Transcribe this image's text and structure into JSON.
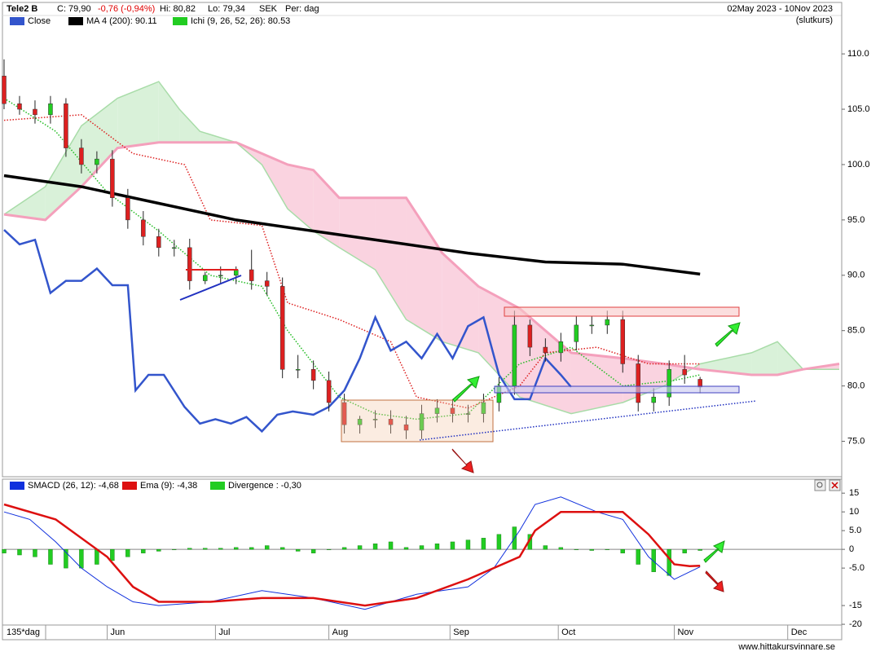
{
  "chart_data": [
    {
      "type": "candlestick",
      "title": "Tele2 B",
      "info": [
        "C: 79,90",
        "-0,76 (-0,94%)",
        "Hi: 80,82",
        "Lo: 79,34",
        "SEK",
        "Per: dag"
      ],
      "date_range": "02May 2023 - 10Nov 2023",
      "price_note": "(slutkurs)",
      "x": [
        0,
        3,
        6,
        9,
        12,
        15,
        18,
        21,
        24,
        27,
        30,
        33,
        36,
        39,
        42,
        45,
        48,
        51,
        54,
        57,
        60,
        63,
        66,
        69,
        72,
        75,
        78,
        81,
        84,
        87,
        90,
        93,
        96,
        99,
        102,
        105,
        108,
        111,
        114,
        117,
        120,
        123,
        126,
        129,
        132,
        135
      ],
      "open": [
        108,
        105.5,
        105,
        104.5,
        105.5,
        101.5,
        100,
        100.5,
        97,
        95,
        93.5,
        92.5,
        92.5,
        89.5,
        90,
        90,
        90.5,
        89.5,
        89,
        81.5,
        81.5,
        80.5,
        78.5,
        76.5,
        77,
        77,
        76.5,
        76,
        77.5,
        78,
        77.5,
        77.5,
        78.5,
        80,
        85.5,
        83.5,
        83,
        84,
        85.5,
        85.5,
        86,
        82,
        78.5,
        79,
        81.5,
        80.6
      ],
      "high": [
        109.5,
        106.2,
        105.8,
        106.2,
        106,
        102.3,
        101.2,
        101.3,
        97.8,
        95.8,
        94.2,
        93.2,
        93.3,
        90.3,
        90.8,
        90.8,
        92.3,
        90.3,
        89.8,
        82.8,
        82.3,
        81.3,
        79.3,
        77.3,
        77.8,
        77.8,
        77.3,
        78.3,
        78.8,
        78.8,
        78.3,
        79.3,
        80.8,
        86.8,
        86,
        84.3,
        84.8,
        86.3,
        86.3,
        86.8,
        86.8,
        82.8,
        79.8,
        82.3,
        82.8,
        80.82
      ],
      "low": [
        105,
        104.5,
        103.7,
        103.7,
        100.7,
        99.2,
        99.2,
        96.2,
        94.2,
        92.7,
        91.7,
        91.7,
        88.7,
        89.2,
        89.2,
        89.2,
        88.7,
        88.2,
        80.7,
        80.7,
        79.7,
        77.7,
        75.7,
        75.7,
        76.2,
        75.7,
        75.2,
        75.2,
        76.7,
        76.7,
        76.7,
        76.7,
        77.7,
        79.2,
        82.7,
        82.2,
        82.2,
        83.2,
        84.7,
        84.7,
        81.2,
        77.7,
        77.7,
        78.2,
        80.2,
        79.34
      ],
      "close": [
        105.5,
        105,
        104.5,
        105.5,
        101.5,
        100,
        100.5,
        97,
        95,
        93.5,
        92.5,
        92.5,
        89.5,
        90,
        90,
        90.5,
        89.5,
        89,
        81.5,
        81.5,
        80.5,
        78.5,
        76.5,
        77,
        77,
        76.5,
        76,
        77.5,
        78,
        77.5,
        77.5,
        78.5,
        80,
        85.5,
        83.5,
        83,
        84,
        85.5,
        85.5,
        86,
        82,
        78.5,
        79,
        81.5,
        81,
        79.9
      ],
      "up_color": "#22cc22",
      "down_color": "#dd2020",
      "series": [
        {
          "name": "Close",
          "color": "#3355cc",
          "x": [
            0,
            3,
            6,
            9,
            12,
            15,
            18,
            21,
            24,
            25.5,
            28,
            31,
            35,
            38,
            41,
            44,
            47,
            50,
            53,
            56,
            60,
            63,
            66,
            69,
            72,
            75,
            78,
            81,
            84,
            87,
            90,
            93,
            96,
            99,
            102,
            105,
            108,
            110
          ],
          "values": [
            94.1,
            92.8,
            93.2,
            88.4,
            89.5,
            89.5,
            90.6,
            89.1,
            89.1,
            79.6,
            81,
            81,
            78.1,
            76.6,
            77,
            76.6,
            77.2,
            75.9,
            77.4,
            77.7,
            77.4,
            78.1,
            79.6,
            82.5,
            86.2,
            83.2,
            84,
            82.5,
            84.7,
            82.5,
            85.4,
            86.2,
            81,
            78.8,
            78.8,
            82.5,
            81,
            79.9
          ]
        },
        {
          "name": "MA 4 (200): 90.11",
          "color": "#000000",
          "x": [
            0,
            15,
            30,
            45,
            60,
            75,
            90,
            105,
            120,
            135
          ],
          "values": [
            99,
            98,
            96.5,
            95,
            94,
            93,
            92,
            91.2,
            91,
            90.1
          ]
        }
      ],
      "ichimoku": {
        "name": "Ichi (9, 26, 52, 26): 80.53",
        "color": "#22cc22",
        "tenkan": {
          "color": "#dd2020",
          "x": [
            0,
            15,
            25,
            35,
            40,
            50,
            55,
            65,
            75,
            80,
            90,
            100,
            105,
            115,
            125,
            135
          ],
          "values": [
            104,
            104.5,
            101,
            100,
            95,
            94.5,
            87.5,
            86,
            84,
            79,
            78,
            80,
            83,
            83.5,
            82,
            82
          ]
        },
        "kijun": {
          "color": "#22bb22",
          "x": [
            0,
            10,
            20,
            30,
            40,
            50,
            55,
            65,
            72,
            80,
            90,
            100,
            110,
            120,
            130,
            135
          ],
          "values": [
            106,
            103,
            97.5,
            94,
            90,
            89,
            85,
            79,
            77.5,
            77,
            77.5,
            82,
            83.5,
            80,
            80.5,
            81
          ]
        },
        "span_a": {
          "color": "#a8dca8",
          "fill": "#d9f1d9",
          "x": [
            0,
            8,
            15,
            22,
            30,
            34,
            38,
            45,
            50,
            55,
            60,
            65,
            72,
            78,
            85,
            92,
            100,
            110,
            120,
            128,
            135,
            145,
            150,
            155,
            162
          ],
          "values": [
            95.5,
            98,
            103.5,
            106,
            107.5,
            105,
            103,
            102,
            100,
            96,
            94,
            92.5,
            90.5,
            86,
            84,
            83,
            79,
            77.5,
            78.5,
            80,
            82,
            83,
            84,
            81.5,
            81.5
          ]
        },
        "span_b": {
          "color": "#f4a0bc",
          "fill": "#fad3e0",
          "x": [
            0,
            8,
            15,
            22,
            30,
            34,
            38,
            45,
            50,
            55,
            60,
            65,
            72,
            78,
            85,
            92,
            100,
            110,
            120,
            128,
            135,
            145,
            150,
            155,
            162
          ],
          "values": [
            95.5,
            95,
            98,
            101.5,
            102,
            102,
            102,
            102,
            101,
            100,
            99.5,
            97,
            97,
            97,
            92,
            89,
            87,
            83,
            82.5,
            82,
            81.5,
            81,
            81,
            81.5,
            82
          ]
        }
      },
      "xlim": [
        0,
        162
      ],
      "ylim": [
        71.8,
        114.5
      ],
      "yticks": [
        {
          "value": 110,
          "label": "110.0"
        },
        {
          "value": 105,
          "label": "105.0"
        },
        {
          "value": 100,
          "label": "100.0"
        },
        {
          "value": 95,
          "label": "95.0"
        },
        {
          "value": 90,
          "label": "90.0"
        },
        {
          "value": 85,
          "label": "85.0"
        },
        {
          "value": 80,
          "label": "80.0"
        },
        {
          "value": 75,
          "label": "75.0"
        }
      ]
    },
    {
      "type": "macd",
      "series": [
        {
          "name": "SMACD (26, 12): -4,68",
          "color": "#1030dd",
          "x": [
            0,
            5,
            10,
            15,
            20,
            25,
            30,
            40,
            50,
            60,
            70,
            75,
            80,
            90,
            95,
            100,
            103,
            108,
            115,
            120,
            125,
            130,
            133,
            135
          ],
          "values": [
            10,
            8,
            2,
            -5,
            -10,
            -14,
            -15,
            -14,
            -11,
            -13,
            -16,
            -14,
            -12,
            -10,
            -5,
            5,
            12,
            14,
            10,
            8,
            -2,
            -8,
            -6,
            -4.68
          ]
        },
        {
          "name": "Ema (9): -4,38",
          "color": "#dd1010",
          "x": [
            0,
            10,
            20,
            25,
            30,
            40,
            50,
            60,
            70,
            80,
            90,
            100,
            103,
            108,
            115,
            120,
            125,
            130,
            133,
            135
          ],
          "values": [
            12,
            8,
            -2,
            -10,
            -14,
            -14,
            -13,
            -13,
            -15,
            -13,
            -8,
            -2,
            5,
            10,
            10,
            10,
            4,
            -4,
            -4.5,
            -4.38
          ]
        },
        {
          "name": "Divergence : -0,30",
          "color": "#22cc22",
          "type": "bar",
          "x": [
            0,
            3,
            6,
            9,
            12,
            15,
            18,
            21,
            24,
            27,
            30,
            33,
            36,
            39,
            42,
            45,
            48,
            51,
            54,
            57,
            60,
            63,
            66,
            69,
            72,
            75,
            78,
            81,
            84,
            87,
            90,
            93,
            96,
            99,
            102,
            105,
            108,
            111,
            114,
            117,
            120,
            123,
            126,
            129,
            132,
            135
          ],
          "values": [
            -1,
            -1.5,
            -2,
            -4,
            -5,
            -5,
            -4,
            -3,
            -2,
            -1,
            -0.5,
            0,
            0.3,
            0.3,
            0.3,
            0.5,
            0.5,
            1,
            0.5,
            -0.5,
            -1,
            0,
            0.5,
            1,
            1.5,
            2,
            0.5,
            1,
            1.5,
            2,
            2.5,
            3,
            4,
            6,
            4,
            1,
            0.5,
            0,
            -0.3,
            0,
            -1,
            -4,
            -6,
            -7,
            -1,
            -0.3
          ]
        }
      ],
      "xlim": [
        0,
        162
      ],
      "ylim": [
        -20.2,
        18.3
      ],
      "yticks": [
        15,
        10,
        {
          "value": 5,
          "label": "5.0"
        },
        0,
        {
          "value": -5,
          "label": "-5.0"
        },
        -15,
        -20
      ],
      "xticks": [
        {
          "value": 20,
          "label": "Jun"
        },
        {
          "value": 41,
          "label": "Jul"
        },
        {
          "value": 63,
          "label": "Aug"
        },
        {
          "value": 86.5,
          "label": "Sep"
        },
        {
          "value": 107.5,
          "label": "Oct"
        },
        {
          "value": 130,
          "label": "Nov"
        },
        {
          "value": 152,
          "label": "Dec"
        }
      ],
      "period_label": "135*dag"
    }
  ],
  "source": "www.hittakursvinnare.se"
}
